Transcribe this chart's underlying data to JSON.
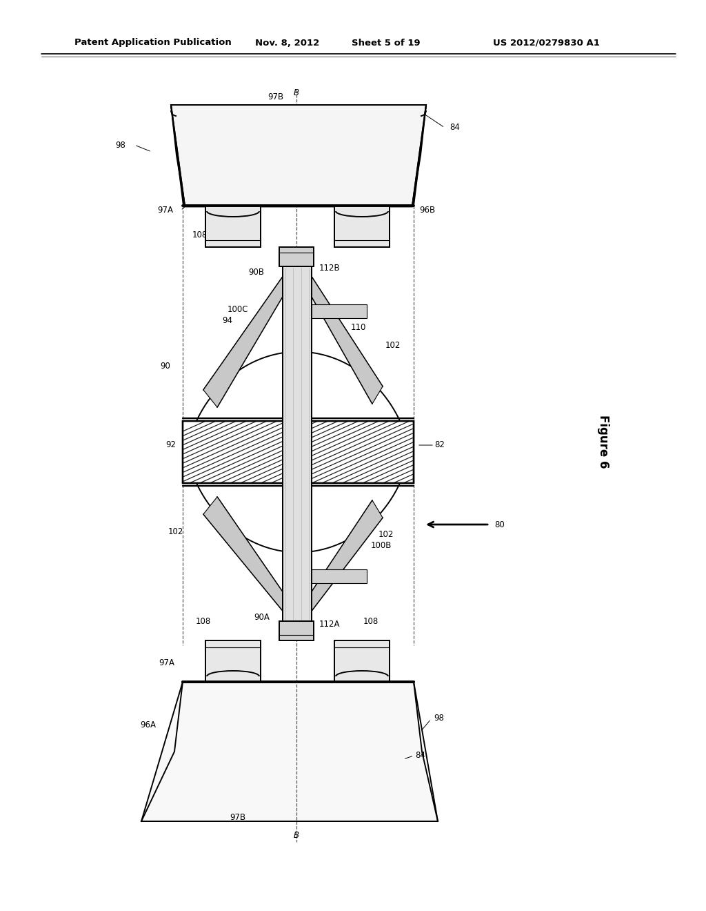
{
  "bg_color": "#ffffff",
  "lc": "#000000",
  "header_text": "Patent Application Publication",
  "header_date": "Nov. 8, 2012",
  "header_sheet": "Sheet 5 of 19",
  "header_patent": "US 2012/0279830 A1",
  "figure_label": "Figure 6",
  "fig_w": 10.24,
  "fig_h": 13.2,
  "dpi": 100
}
